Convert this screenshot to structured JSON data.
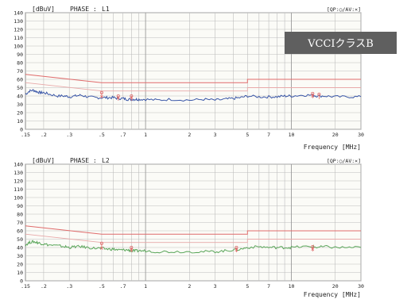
{
  "badge": {
    "text": "VCCIクラスB",
    "bg": "#5f5f5f",
    "fg": "#ffffff"
  },
  "colors": {
    "plot_bg": "#fbfbf7",
    "grid": "#bdbdbd",
    "frame": "#8a8a8a",
    "limit": "#e06b6b",
    "limit_faint": "#e8a9a9",
    "text": "#222222"
  },
  "chart_data": [
    {
      "type": "line",
      "unit_label": "[dBuV]",
      "phase_label": "PHASE :",
      "phase_value": "L1",
      "legend": "[QP:○/AV:×]",
      "xlabel": "Frequency [MHz]",
      "x_scale": "log",
      "xlim": [
        0.15,
        30
      ],
      "ylim": [
        0,
        140
      ],
      "y_ticks": [
        0,
        10,
        20,
        30,
        40,
        50,
        60,
        70,
        80,
        90,
        100,
        110,
        120,
        130,
        140
      ],
      "x_ticks": [
        {
          "v": 0.15,
          "label": ".15"
        },
        {
          "v": 0.2,
          "label": ".2"
        },
        {
          "v": 0.3,
          "label": ".3"
        },
        {
          "v": 0.5,
          "label": ".5"
        },
        {
          "v": 0.7,
          "label": ".7"
        },
        {
          "v": 1,
          "label": "1"
        },
        {
          "v": 2,
          "label": "2"
        },
        {
          "v": 3,
          "label": "3"
        },
        {
          "v": 5,
          "label": "5"
        },
        {
          "v": 7,
          "label": "7"
        },
        {
          "v": 10,
          "label": "10"
        },
        {
          "v": 20,
          "label": "20"
        },
        {
          "v": 30,
          "label": "30"
        }
      ],
      "limit_qp": [
        [
          0.15,
          66
        ],
        [
          0.5,
          56
        ],
        [
          5,
          56
        ],
        [
          5,
          60
        ],
        [
          30,
          60
        ]
      ],
      "limit_av": [
        [
          0.15,
          56
        ],
        [
          0.5,
          46
        ],
        [
          5,
          46
        ],
        [
          5,
          50
        ],
        [
          30,
          50
        ]
      ],
      "noise_color": "#3a57a8",
      "noise": [
        [
          0.15,
          42
        ],
        [
          0.16,
          46
        ],
        [
          0.17,
          47
        ],
        [
          0.18,
          45
        ],
        [
          0.19,
          44
        ],
        [
          0.2,
          44
        ],
        [
          0.22,
          42
        ],
        [
          0.25,
          40
        ],
        [
          0.28,
          40
        ],
        [
          0.3,
          39
        ],
        [
          0.33,
          40
        ],
        [
          0.36,
          41
        ],
        [
          0.4,
          39
        ],
        [
          0.45,
          38
        ],
        [
          0.5,
          38
        ],
        [
          0.55,
          38
        ],
        [
          0.6,
          38
        ],
        [
          0.65,
          37
        ],
        [
          0.7,
          37
        ],
        [
          0.75,
          36
        ],
        [
          0.8,
          36
        ],
        [
          0.85,
          36
        ],
        [
          0.9,
          36
        ],
        [
          1,
          36
        ],
        [
          1.2,
          35
        ],
        [
          1.5,
          36
        ],
        [
          2,
          35
        ],
        [
          2.5,
          36
        ],
        [
          3,
          35
        ],
        [
          3.5,
          36
        ],
        [
          4,
          37
        ],
        [
          4.5,
          38
        ],
        [
          5,
          40
        ],
        [
          6,
          39
        ],
        [
          7,
          39
        ],
        [
          8,
          39
        ],
        [
          9,
          40
        ],
        [
          10,
          40
        ],
        [
          12,
          41
        ],
        [
          14,
          41
        ],
        [
          15,
          40
        ],
        [
          17,
          40
        ],
        [
          20,
          39
        ],
        [
          25,
          39
        ],
        [
          30,
          39
        ]
      ],
      "markers_qp": [
        [
          0.5,
          44
        ],
        [
          0.65,
          40
        ],
        [
          0.8,
          40
        ],
        [
          14,
          43
        ],
        [
          15.5,
          42
        ]
      ],
      "markers_av": [
        [
          0.5,
          39
        ],
        [
          0.65,
          38
        ],
        [
          0.8,
          38
        ],
        [
          14,
          40
        ]
      ]
    },
    {
      "type": "line",
      "unit_label": "[dBuV]",
      "phase_label": "PHASE :",
      "phase_value": "L2",
      "legend": "[QP:○/AV:×]",
      "xlabel": "Frequency [MHz]",
      "x_scale": "log",
      "xlim": [
        0.15,
        30
      ],
      "ylim": [
        0,
        140
      ],
      "y_ticks": [
        0,
        10,
        20,
        30,
        40,
        50,
        60,
        70,
        80,
        90,
        100,
        110,
        120,
        130,
        140
      ],
      "x_ticks": [
        {
          "v": 0.15,
          "label": ".15"
        },
        {
          "v": 0.2,
          "label": ".2"
        },
        {
          "v": 0.3,
          "label": ".3"
        },
        {
          "v": 0.5,
          "label": ".5"
        },
        {
          "v": 0.7,
          "label": ".7"
        },
        {
          "v": 1,
          "label": "1"
        },
        {
          "v": 2,
          "label": "2"
        },
        {
          "v": 3,
          "label": "3"
        },
        {
          "v": 5,
          "label": "5"
        },
        {
          "v": 7,
          "label": "7"
        },
        {
          "v": 10,
          "label": "10"
        },
        {
          "v": 20,
          "label": "20"
        },
        {
          "v": 30,
          "label": "30"
        }
      ],
      "limit_qp": [
        [
          0.15,
          66
        ],
        [
          0.5,
          56
        ],
        [
          5,
          56
        ],
        [
          5,
          60
        ],
        [
          30,
          60
        ]
      ],
      "limit_av": [
        [
          0.15,
          56
        ],
        [
          0.5,
          46
        ],
        [
          5,
          46
        ],
        [
          5,
          50
        ],
        [
          30,
          50
        ]
      ],
      "noise_color": "#5aa65a",
      "noise": [
        [
          0.15,
          43
        ],
        [
          0.16,
          46
        ],
        [
          0.17,
          47
        ],
        [
          0.18,
          46
        ],
        [
          0.19,
          45
        ],
        [
          0.2,
          44
        ],
        [
          0.22,
          43
        ],
        [
          0.25,
          42
        ],
        [
          0.28,
          41
        ],
        [
          0.3,
          40
        ],
        [
          0.33,
          41
        ],
        [
          0.36,
          41
        ],
        [
          0.4,
          40
        ],
        [
          0.45,
          39
        ],
        [
          0.5,
          39
        ],
        [
          0.55,
          38
        ],
        [
          0.6,
          38
        ],
        [
          0.65,
          37
        ],
        [
          0.7,
          37
        ],
        [
          0.75,
          37
        ],
        [
          0.8,
          36
        ],
        [
          0.85,
          36
        ],
        [
          0.9,
          36
        ],
        [
          1,
          36
        ],
        [
          1.2,
          35
        ],
        [
          1.5,
          35
        ],
        [
          2,
          35
        ],
        [
          2.5,
          35
        ],
        [
          3,
          35
        ],
        [
          3.5,
          36
        ],
        [
          4,
          37
        ],
        [
          4.5,
          38
        ],
        [
          5,
          40
        ],
        [
          6,
          41
        ],
        [
          7,
          40
        ],
        [
          8,
          40
        ],
        [
          9,
          40
        ],
        [
          10,
          40
        ],
        [
          12,
          41
        ],
        [
          14,
          41
        ],
        [
          15,
          40
        ],
        [
          17,
          41
        ],
        [
          20,
          40
        ],
        [
          25,
          40
        ],
        [
          30,
          40
        ]
      ],
      "markers_qp": [
        [
          0.5,
          45
        ],
        [
          0.8,
          40
        ],
        [
          4.2,
          40
        ],
        [
          14,
          41
        ]
      ],
      "markers_av": [
        [
          0.5,
          39
        ],
        [
          0.8,
          37
        ],
        [
          4.2,
          37
        ],
        [
          14,
          38
        ]
      ]
    }
  ]
}
